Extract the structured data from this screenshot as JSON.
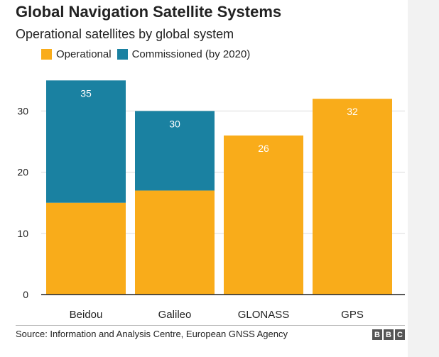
{
  "chart_data": {
    "type": "bar",
    "stacked": true,
    "title": "Global Navigation Satellite Systems",
    "subtitle": "Operational satellites by global system",
    "categories": [
      "Beidou",
      "Galileo",
      "GLONASS",
      "GPS"
    ],
    "series": [
      {
        "name": "Operational",
        "values": [
          15,
          17,
          26,
          32
        ],
        "color": "#f9ac1a"
      },
      {
        "name": "Commissioned (by 2020)",
        "values": [
          20,
          13,
          0,
          0
        ],
        "color": "#1a81a1"
      }
    ],
    "totals": [
      35,
      30,
      26,
      32
    ],
    "total_label_colors": [
      "#ffffff",
      "#ffffff",
      "#ffffff",
      "#ffffff"
    ],
    "yticks": [
      0,
      10,
      20,
      30
    ],
    "ylim": [
      0,
      36
    ],
    "grid": true,
    "legend_position": "top-left",
    "source": "Source: Information and Analysis Centre, European GNSS Agency",
    "logo_letters": [
      "B",
      "B",
      "C"
    ]
  }
}
